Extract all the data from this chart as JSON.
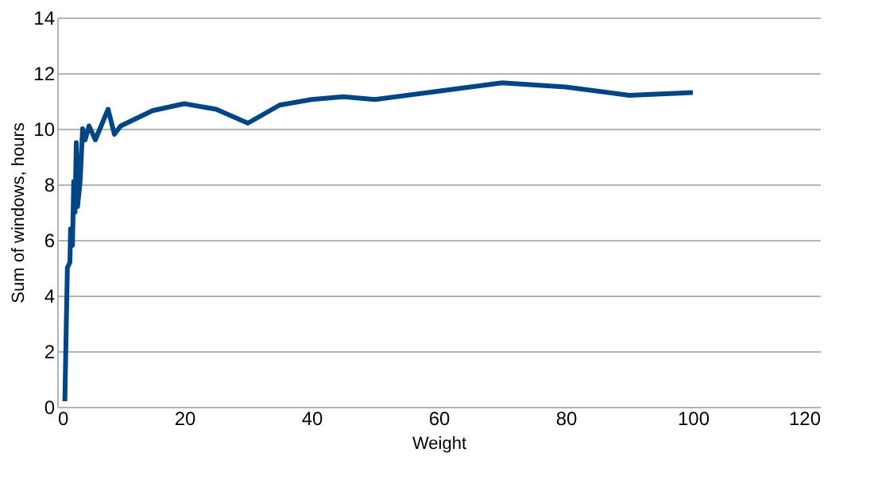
{
  "chart_data": {
    "type": "line",
    "xlabel": "Weight",
    "ylabel": "Sum of windows, hours",
    "xlim": [
      0,
      120
    ],
    "xticks": [
      0,
      20,
      40,
      60,
      80,
      100,
      120
    ],
    "ylim": [
      0,
      14
    ],
    "yticks": [
      0,
      2,
      4,
      6,
      8,
      10,
      12,
      14
    ],
    "grid": "y",
    "marker": "none",
    "line_style": "solid",
    "series": [
      {
        "color": "#004586",
        "x": [
          1.2,
          1.6,
          2,
          2.1,
          2.4,
          2.6,
          2.8,
          3,
          3.2,
          3.6,
          4,
          4.4,
          5,
          6,
          8,
          9,
          10,
          15,
          20,
          25,
          30,
          35,
          40,
          45,
          50,
          60,
          70,
          80,
          90,
          100
        ],
        "values": [
          0.2,
          5,
          5.2,
          6.4,
          5.8,
          8.1,
          7,
          9.5,
          7.2,
          8.1,
          10,
          9.6,
          10.1,
          9.6,
          10.7,
          9.8,
          10.1,
          10.65,
          10.9,
          10.7,
          10.2,
          10.85,
          11.05,
          11.15,
          11.05,
          11.35,
          11.65,
          11.5,
          11.2,
          11.3
        ]
      }
    ]
  }
}
